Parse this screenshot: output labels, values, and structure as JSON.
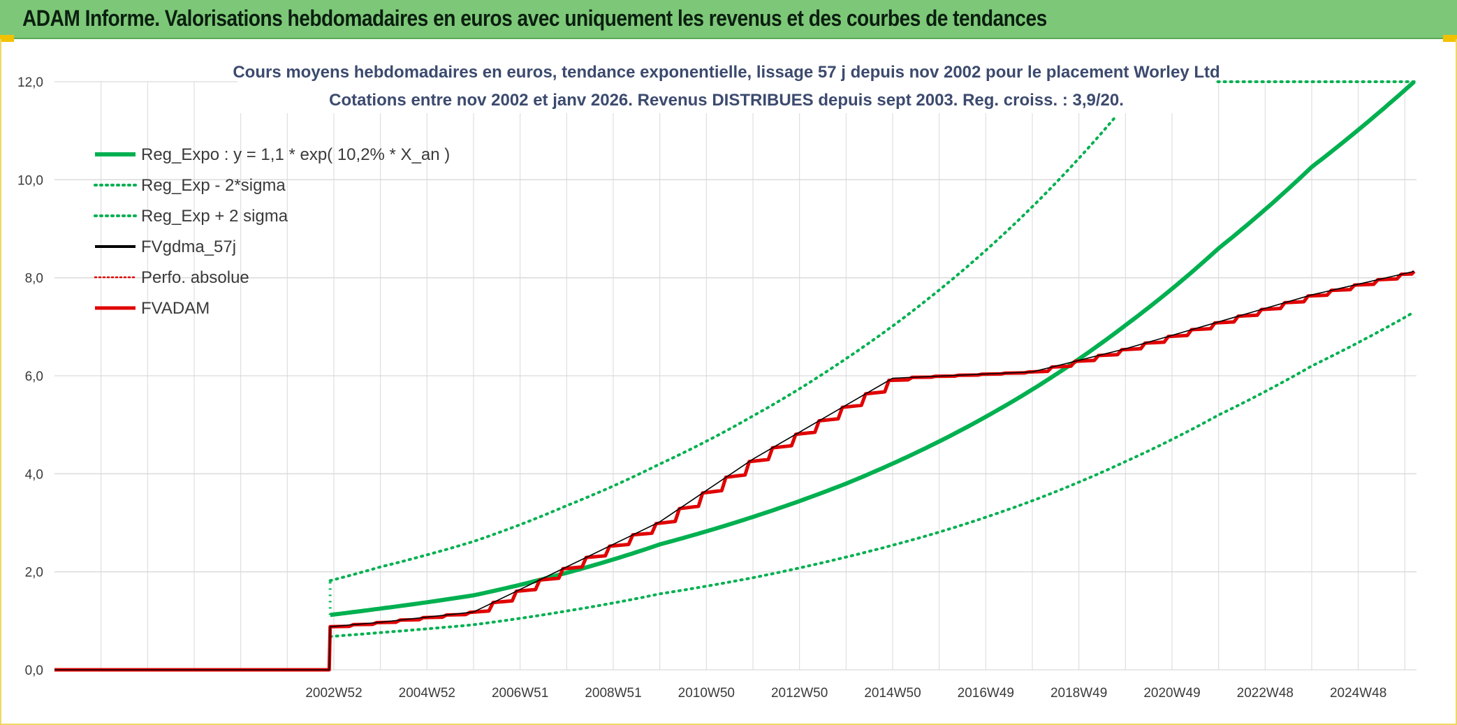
{
  "header": {
    "title": "ADAM Informe. Valorisations hebdomadaires en euros avec uniquement les revenus et des courbes de tendances"
  },
  "colors": {
    "banner": "#7dc878",
    "green": "#00b050",
    "red": "#e00000",
    "black": "#000000",
    "grid": "#d9d9d9"
  },
  "chart_data": {
    "type": "line",
    "title": "Cours moyens hebdomadaires en euros, tendance exponentielle, lissage 57 j depuis nov 2002 pour le placement Worley Ltd",
    "subtitle": "Cotations entre nov 2002 et janv 2026. Revenus DISTRIBUES depuis sept 2003. Reg. croiss. : 3,9/20.",
    "xlabel": "",
    "ylabel": "",
    "ylim": [
      0,
      12
    ],
    "yticks": [
      "0,0",
      "2,0",
      "4,0",
      "6,0",
      "8,0",
      "10,0",
      "12,0"
    ],
    "xticks": [
      "2002W52",
      "2004W52",
      "2006W51",
      "2008W51",
      "2010W50",
      "2012W50",
      "2014W50",
      "2016W49",
      "2018W49",
      "2020W49",
      "2022W48",
      "2024W48"
    ],
    "grid": true,
    "legend_position": "top-left",
    "x_range_years": [
      1997.0,
      2026.25
    ],
    "series": [
      {
        "name": "Reg_Expo : y = 1,1 * exp( 10,2% *  X_an )",
        "style": "solid-thick",
        "color": "#00b050",
        "x": [
          2002.92,
          2004,
          2006,
          2008,
          2010,
          2012,
          2014,
          2016,
          2018,
          2020,
          2022,
          2024,
          2026.2
        ],
        "values": [
          1.12,
          1.25,
          1.52,
          1.98,
          2.56,
          3.12,
          3.8,
          4.66,
          5.72,
          7.03,
          8.6,
          10.26,
          12.0
        ]
      },
      {
        "name": "Reg_Exp - 2*sigma",
        "style": "dotted",
        "color": "#00b050",
        "x": [
          2002.92,
          2004,
          2006,
          2008,
          2010,
          2012,
          2014,
          2016,
          2018,
          2020,
          2022,
          2024,
          2026.2
        ],
        "values": [
          0.68,
          0.76,
          0.92,
          1.2,
          1.55,
          1.88,
          2.3,
          2.81,
          3.45,
          4.25,
          5.2,
          6.2,
          7.3
        ]
      },
      {
        "name": "Reg_Exp + 2 sigma",
        "style": "dotted",
        "color": "#00b050",
        "x": [
          2002.92,
          2004,
          2006,
          2008,
          2010,
          2012,
          2014,
          2016,
          2018,
          2019.8
        ],
        "values": [
          1.82,
          2.1,
          2.62,
          3.35,
          4.2,
          5.18,
          6.35,
          7.75,
          9.45,
          11.3
        ]
      },
      {
        "name": "FVgdma_57j",
        "style": "solid",
        "color": "#000000",
        "x": [
          1997.0,
          2002.9,
          2002.92,
          2004,
          2006,
          2008,
          2010,
          2012,
          2014,
          2015,
          2018,
          2020,
          2022,
          2024,
          2026.2
        ],
        "values": [
          0.0,
          0.0,
          0.88,
          0.97,
          1.18,
          2.1,
          3.02,
          4.3,
          5.4,
          5.95,
          6.08,
          6.55,
          7.1,
          7.65,
          8.13
        ]
      },
      {
        "name": "Perfo. absolue",
        "style": "dotted",
        "color": "#e00000",
        "x": [],
        "values": []
      },
      {
        "name": "FVADAM",
        "style": "solid-thick-steps",
        "color": "#e00000",
        "x": [
          1997.0,
          2002.9,
          2002.92,
          2004,
          2006,
          2008,
          2010,
          2012,
          2014,
          2015,
          2018,
          2020,
          2022,
          2024,
          2026.2
        ],
        "values": [
          0.0,
          0.0,
          0.88,
          0.97,
          1.18,
          2.1,
          3.02,
          4.3,
          5.4,
          5.95,
          6.08,
          6.55,
          7.1,
          7.65,
          8.13
        ]
      }
    ]
  }
}
